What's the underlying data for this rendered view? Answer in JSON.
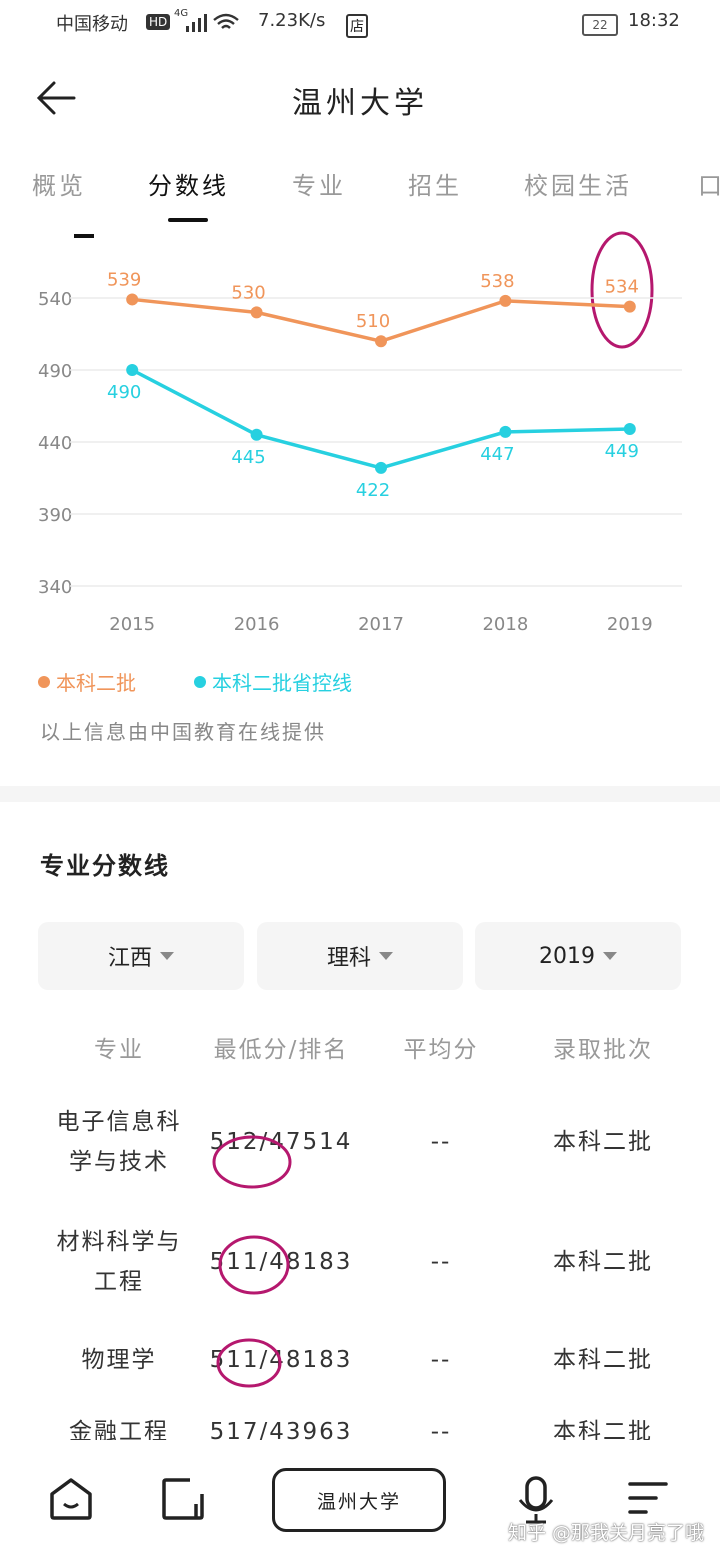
{
  "status_bar": {
    "carrier": "中国移动",
    "hd": "HD",
    "network": "4G",
    "speed": "7.23K/s",
    "store": "店",
    "battery": "22",
    "time": "18:32"
  },
  "header": {
    "title": "温州大学"
  },
  "tabs": [
    "概览",
    "分数线",
    "专业",
    "招生",
    "校园生活",
    "口"
  ],
  "chart_data": {
    "type": "line",
    "categories": [
      "2015",
      "2016",
      "2017",
      "2018",
      "2019"
    ],
    "series": [
      {
        "name": "本科二批",
        "color": "#f0955a",
        "values": [
          539,
          530,
          510,
          538,
          534
        ]
      },
      {
        "name": "本科二批省控线",
        "color": "#27d0e0",
        "values": [
          490,
          445,
          422,
          447,
          449
        ]
      }
    ],
    "ylim": [
      340,
      540
    ],
    "yticks": [
      340,
      390,
      440,
      490,
      540
    ],
    "grid": true,
    "legend": "bottom-left"
  },
  "source_note": "以上信息由中国教育在线提供",
  "section": {
    "title": "专业分数线",
    "filters": [
      "江西",
      "理科",
      "2019"
    ],
    "table": {
      "headers": [
        "专业",
        "最低分/排名",
        "平均分",
        "录取批次"
      ],
      "rows": [
        [
          "电子信息科学与技术",
          "512/47514",
          "--",
          "本科二批"
        ],
        [
          "材料科学与工程",
          "511/48183",
          "--",
          "本科二批"
        ],
        [
          "物理学",
          "511/48183",
          "--",
          "本科二批"
        ],
        [
          "金融工程",
          "517/43963",
          "--",
          "本科二批"
        ]
      ]
    }
  },
  "bottom_nav": {
    "center": "温州大学"
  },
  "watermark": "知乎 @那我关月亮了哦"
}
